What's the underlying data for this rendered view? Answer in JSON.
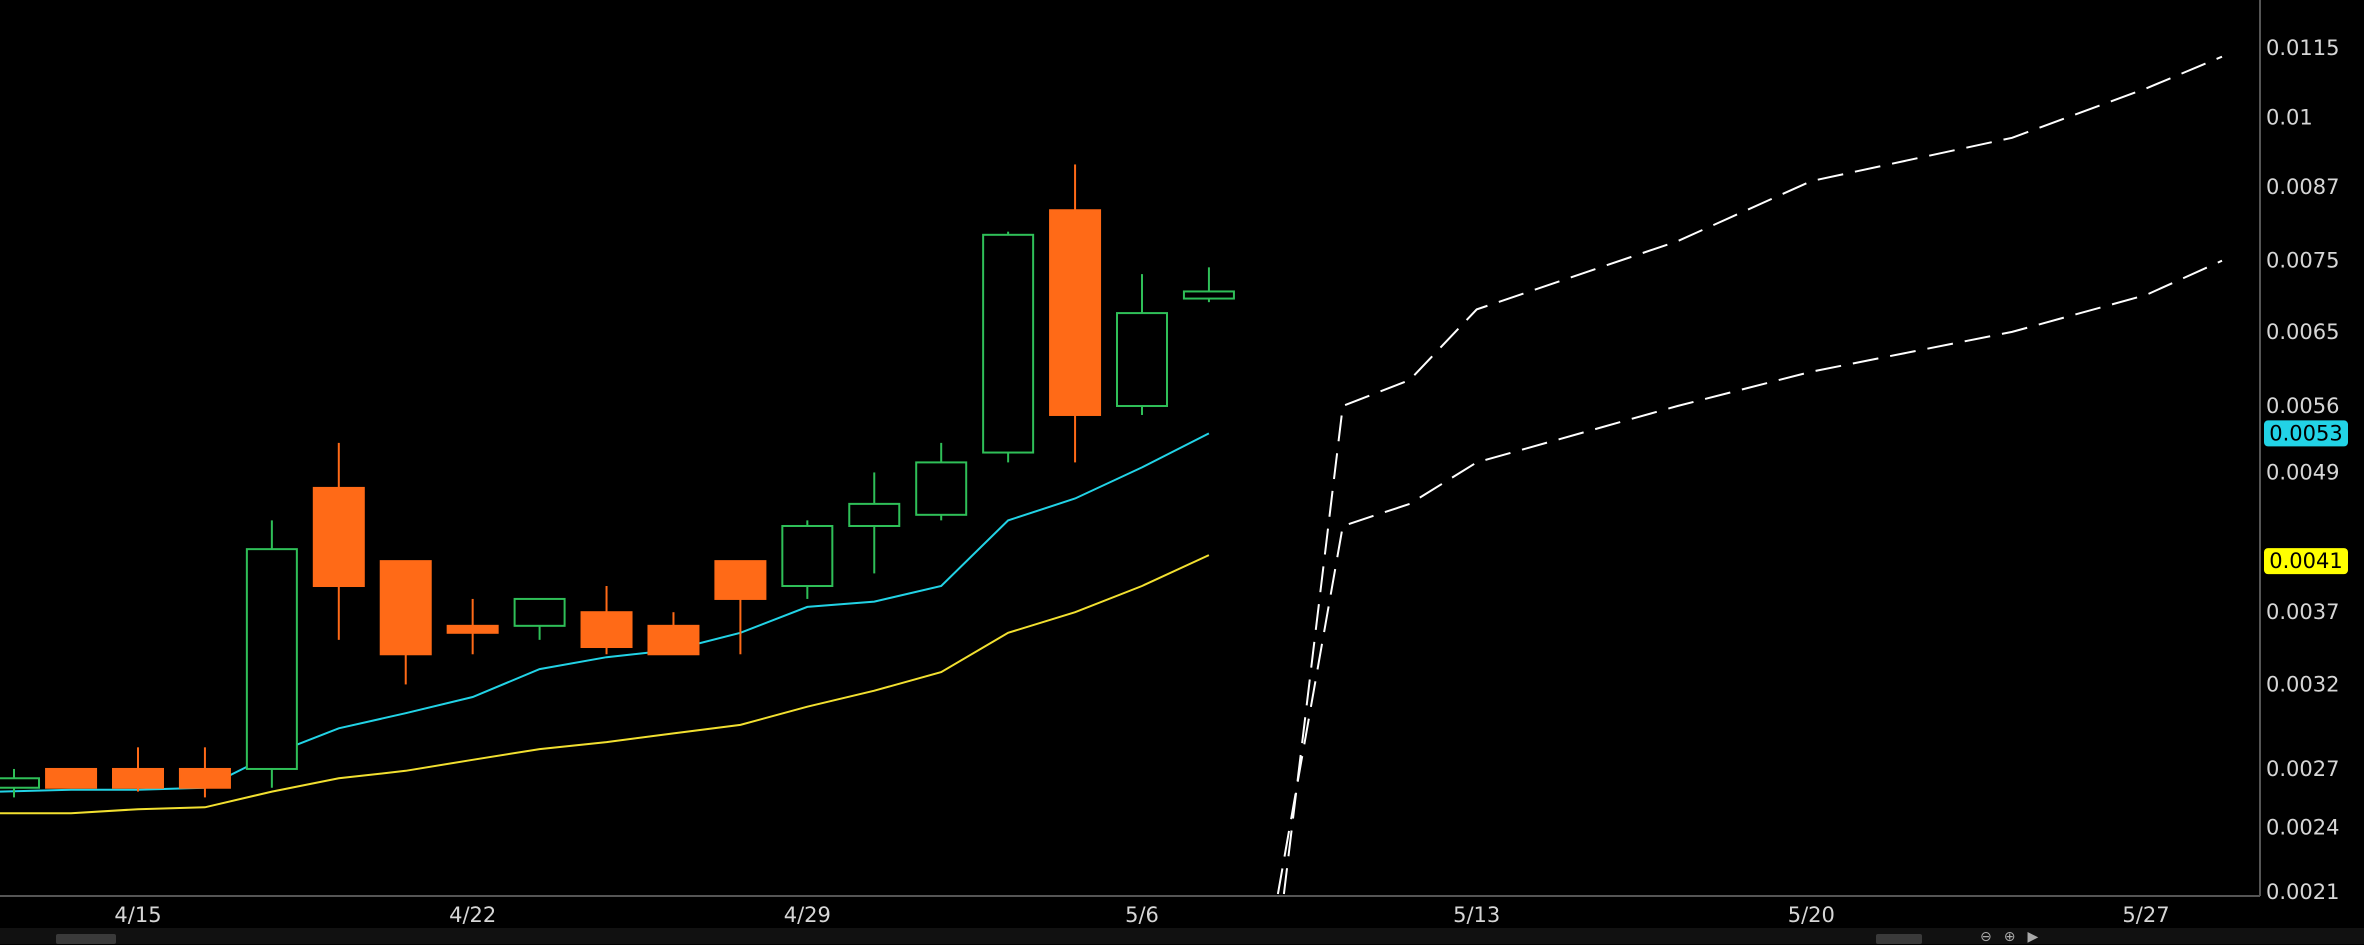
{
  "chart_data": {
    "type": "candlestick",
    "title": "",
    "xlabel": "",
    "ylabel": "",
    "ylim": [
      0.0021,
      0.0119
    ],
    "y_scale": "log",
    "y_ticks": [
      "0.0115",
      "0.01",
      "0.0087",
      "0.0075",
      "0.0065",
      "0.0056",
      "0.0049",
      "0.0041",
      "0.0037",
      "0.0032",
      "0.0027",
      "0.0024",
      "0.0021"
    ],
    "x_ticks": [
      "4/15",
      "4/22",
      "4/29",
      "5/6",
      "5/13",
      "5/20",
      "5/27"
    ],
    "x_tick_dates": [
      "2024-04-15",
      "2024-04-22",
      "2024-04-29",
      "2024-05-06",
      "2024-05-13",
      "2024-05-20",
      "2024-05-27"
    ],
    "grid": false,
    "colors": {
      "up": "#2fbf58",
      "down": "#ff6a17",
      "ma_fast": "#22d3e6",
      "ma_slow": "#f2e030",
      "projection": "#ffffff",
      "axis": "#666666"
    },
    "candles": [
      {
        "date": "2024-04-11",
        "open": 0.0026,
        "high": 0.0027,
        "low": 0.00255,
        "close": 0.00265
      },
      {
        "date": "2024-04-12",
        "open": 0.0027,
        "high": 0.0027,
        "low": 0.0026,
        "close": 0.0026
      },
      {
        "date": "2024-04-15",
        "open": 0.0027,
        "high": 0.00282,
        "low": 0.00258,
        "close": 0.0026
      },
      {
        "date": "2024-04-16",
        "open": 0.0027,
        "high": 0.00282,
        "low": 0.00255,
        "close": 0.0026
      },
      {
        "date": "2024-04-17",
        "open": 0.0027,
        "high": 0.00445,
        "low": 0.0026,
        "close": 0.0042
      },
      {
        "date": "2024-04-18",
        "open": 0.00475,
        "high": 0.0052,
        "low": 0.0035,
        "close": 0.0039
      },
      {
        "date": "2024-04-19",
        "open": 0.0041,
        "high": 0.0041,
        "low": 0.0032,
        "close": 0.0034
      },
      {
        "date": "2024-04-22",
        "open": 0.0036,
        "high": 0.0038,
        "low": 0.0034,
        "close": 0.00355
      },
      {
        "date": "2024-04-23",
        "open": 0.0036,
        "high": 0.0038,
        "low": 0.0035,
        "close": 0.0038
      },
      {
        "date": "2024-04-24",
        "open": 0.0037,
        "high": 0.0039,
        "low": 0.0034,
        "close": 0.00345
      },
      {
        "date": "2024-04-25",
        "open": 0.0036,
        "high": 0.0037,
        "low": 0.0034,
        "close": 0.0034
      },
      {
        "date": "2024-04-26",
        "open": 0.0041,
        "high": 0.0041,
        "low": 0.0034,
        "close": 0.0038
      },
      {
        "date": "2024-04-29",
        "open": 0.0039,
        "high": 0.00445,
        "low": 0.0038,
        "close": 0.0044
      },
      {
        "date": "2024-04-30",
        "open": 0.0044,
        "high": 0.0049,
        "low": 0.004,
        "close": 0.0046
      },
      {
        "date": "2024-05-01",
        "open": 0.0045,
        "high": 0.0052,
        "low": 0.00445,
        "close": 0.005
      },
      {
        "date": "2024-05-02",
        "open": 0.0051,
        "high": 0.00795,
        "low": 0.005,
        "close": 0.0079
      },
      {
        "date": "2024-05-03",
        "open": 0.0083,
        "high": 0.0091,
        "low": 0.005,
        "close": 0.0055
      },
      {
        "date": "2024-05-06",
        "open": 0.0056,
        "high": 0.0073,
        "low": 0.0055,
        "close": 0.00675
      },
      {
        "date": "2024-05-07",
        "open": 0.00695,
        "high": 0.0074,
        "low": 0.0069,
        "close": 0.00705
      }
    ],
    "series": [
      {
        "values": [
          {
            "date": "2024-04-11",
            "value": 0.00258
          },
          {
            "date": "2024-04-12",
            "value": 0.00259
          },
          {
            "date": "2024-04-15",
            "value": 0.00259
          },
          {
            "date": "2024-04-16",
            "value": 0.0026
          },
          {
            "date": "2024-04-17",
            "value": 0.00278
          },
          {
            "date": "2024-04-18",
            "value": 0.00293
          },
          {
            "date": "2024-04-19",
            "value": 0.00302
          },
          {
            "date": "2024-04-22",
            "value": 0.00312
          },
          {
            "date": "2024-04-23",
            "value": 0.0033
          },
          {
            "date": "2024-04-24",
            "value": 0.00338
          },
          {
            "date": "2024-04-25",
            "value": 0.00343
          },
          {
            "date": "2024-04-26",
            "value": 0.00355
          },
          {
            "date": "2024-04-29",
            "value": 0.00374
          },
          {
            "date": "2024-04-30",
            "value": 0.00378
          },
          {
            "date": "2024-05-01",
            "value": 0.0039
          },
          {
            "date": "2024-05-02",
            "value": 0.00445
          },
          {
            "date": "2024-05-03",
            "value": 0.00465
          },
          {
            "date": "2024-05-06",
            "value": 0.00495
          },
          {
            "date": "2024-05-07",
            "value": 0.0053
          }
        ]
      },
      {
        "values": [
          {
            "date": "2024-04-11",
            "value": 0.00247
          },
          {
            "date": "2024-04-12",
            "value": 0.00247
          },
          {
            "date": "2024-04-15",
            "value": 0.00249
          },
          {
            "date": "2024-04-16",
            "value": 0.0025
          },
          {
            "date": "2024-04-17",
            "value": 0.00258
          },
          {
            "date": "2024-04-18",
            "value": 0.00265
          },
          {
            "date": "2024-04-19",
            "value": 0.00269
          },
          {
            "date": "2024-04-22",
            "value": 0.00275
          },
          {
            "date": "2024-04-23",
            "value": 0.00281
          },
          {
            "date": "2024-04-24",
            "value": 0.00285
          },
          {
            "date": "2024-04-25",
            "value": 0.0029
          },
          {
            "date": "2024-04-26",
            "value": 0.00295
          },
          {
            "date": "2024-04-29",
            "value": 0.00306
          },
          {
            "date": "2024-04-30",
            "value": 0.00316
          },
          {
            "date": "2024-05-01",
            "value": 0.00328
          },
          {
            "date": "2024-05-02",
            "value": 0.00355
          },
          {
            "date": "2024-05-03",
            "value": 0.0037
          },
          {
            "date": "2024-05-06",
            "value": 0.0039
          },
          {
            "date": "2024-05-07",
            "value": 0.00415
          }
        ]
      }
    ],
    "projections": [
      {
        "points": [
          {
            "date": "2024-05-08",
            "value": 0.0021
          },
          {
            "date": "2024-05-09",
            "value": 0.0056
          },
          {
            "date": "2024-05-10",
            "value": 0.0059
          },
          {
            "date": "2024-05-13",
            "value": 0.0068
          },
          {
            "date": "2024-05-16",
            "value": 0.0078
          },
          {
            "date": "2024-05-20",
            "value": 0.0088
          },
          {
            "date": "2024-05-23",
            "value": 0.0096
          },
          {
            "date": "2024-05-27",
            "value": 0.0106
          },
          {
            "date": "2024-05-29",
            "value": 0.0113
          }
        ]
      },
      {
        "points": [
          {
            "date": "2024-05-08",
            "value": 0.0021
          },
          {
            "date": "2024-05-09",
            "value": 0.0044
          },
          {
            "date": "2024-05-10",
            "value": 0.0046
          },
          {
            "date": "2024-05-13",
            "value": 0.005
          },
          {
            "date": "2024-05-16",
            "value": 0.0056
          },
          {
            "date": "2024-05-20",
            "value": 0.006
          },
          {
            "date": "2024-05-23",
            "value": 0.0065
          },
          {
            "date": "2024-05-27",
            "value": 0.007
          },
          {
            "date": "2024-05-29",
            "value": 0.0075
          }
        ]
      }
    ],
    "last_price_badges": [
      {
        "label": "0.0053",
        "value": 0.0053,
        "color": "#22d3e6"
      },
      {
        "label": "0.0041",
        "value": 0.0041,
        "color": "#ffff00"
      }
    ]
  }
}
